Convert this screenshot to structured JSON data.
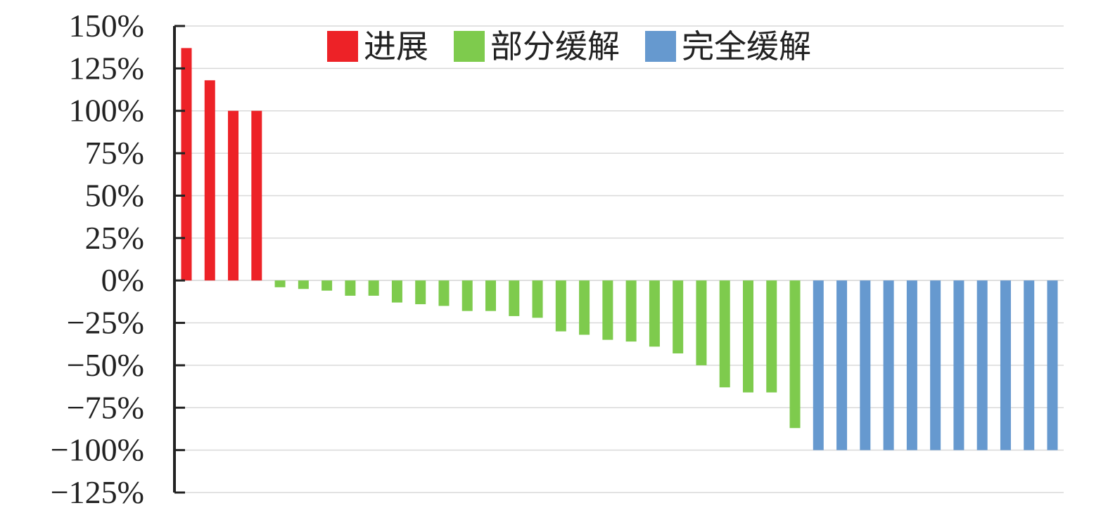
{
  "chart_data": {
    "type": "bar",
    "title": "",
    "xlabel": "",
    "ylabel": "",
    "ylim": [
      -125,
      150
    ],
    "y_ticks": [
      150,
      125,
      100,
      75,
      50,
      25,
      0,
      -25,
      -50,
      -75,
      -100,
      -125
    ],
    "y_tick_labels": [
      "150%",
      "125%",
      "100%",
      "75%",
      "50%",
      "25%",
      "0%",
      "−25%",
      "−50%",
      "−75%",
      "−100%",
      "−125%"
    ],
    "grid": true,
    "legend_position": "top",
    "series": [
      {
        "name": "进展",
        "color": "#ed2227",
        "values": [
          137,
          118,
          100,
          100
        ]
      },
      {
        "name": "部分缓解",
        "color": "#7ecb4d",
        "values": [
          -4,
          -5,
          -6,
          -9,
          -9,
          -13,
          -14,
          -15,
          -18,
          -18,
          -21,
          -22,
          -30,
          -32,
          -35,
          -36,
          -39,
          -43,
          -50,
          -63,
          -66,
          -66,
          -87
        ]
      },
      {
        "name": "完全缓解",
        "color": "#6699cf",
        "values": [
          -100,
          -100,
          -100,
          -100,
          -100,
          -100,
          -100,
          -100,
          -100,
          -100,
          -100
        ]
      }
    ]
  }
}
